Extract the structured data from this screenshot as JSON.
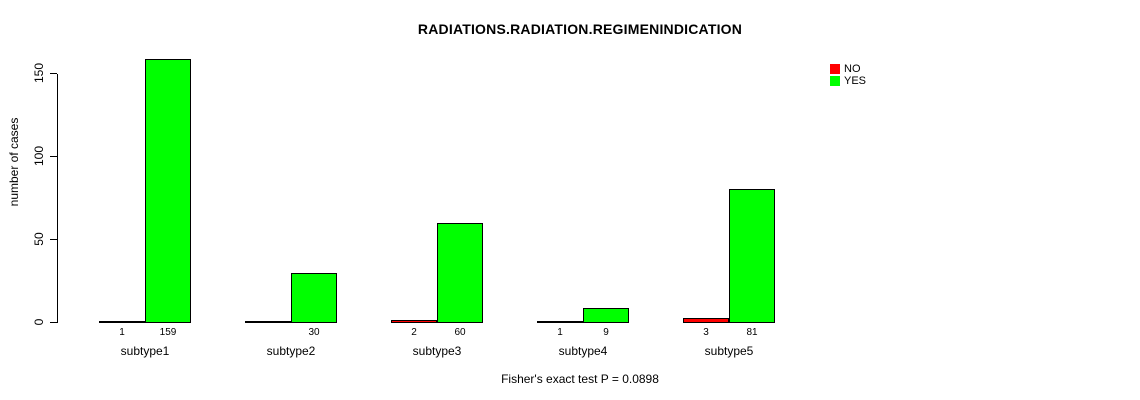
{
  "title": "RADIATIONS.RADIATION.REGIMENINDICATION",
  "caption": "Fisher's exact test P = 0.0898",
  "colors": {
    "no": "#FF0000",
    "yes": "#00FF00",
    "axis": "#000000",
    "background": "#FFFFFF"
  },
  "legend": {
    "items": [
      {
        "label": "NO",
        "color": "#FF0000"
      },
      {
        "label": "YES",
        "color": "#00FF00"
      }
    ]
  },
  "chart_data": {
    "type": "bar",
    "title": "RADIATIONS.RADIATION.REGIMENINDICATION",
    "categories": [
      "subtype1",
      "subtype2",
      "subtype3",
      "subtype4",
      "subtype5"
    ],
    "series": [
      {
        "name": "NO",
        "color": "#FF0000",
        "values": [
          1,
          0,
          2,
          1,
          3
        ],
        "labels": [
          "1",
          "",
          "2",
          "1",
          "3"
        ]
      },
      {
        "name": "YES",
        "color": "#00FF00",
        "values": [
          159,
          30,
          60,
          9,
          81
        ],
        "labels": [
          "159",
          "30",
          "60",
          "9",
          "81"
        ]
      }
    ],
    "xlabel": "",
    "ylabel": "number of cases",
    "yticks": [
      0,
      50,
      100,
      150
    ],
    "ylim": [
      0,
      159
    ],
    "grid": false,
    "legend_position": "top-right",
    "annotation": "Fisher's exact test P = 0.0898"
  }
}
